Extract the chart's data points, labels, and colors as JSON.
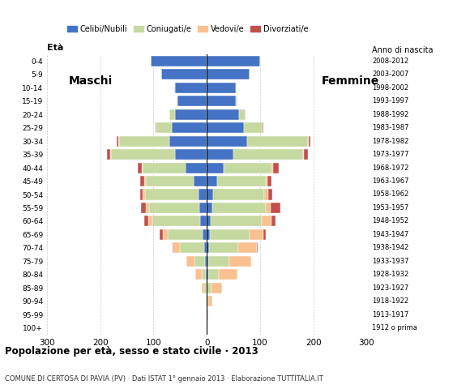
{
  "title": "Popolazione per età, sesso e stato civile · 2013",
  "subtitle": "COMUNE DI CERTOSA DI PAVIA (PV) · Dati ISTAT 1° gennaio 2013 · Elaborazione TUTTITALIA.IT",
  "age_groups": [
    "100+",
    "95-99",
    "90-94",
    "85-89",
    "80-84",
    "75-79",
    "70-74",
    "65-69",
    "60-64",
    "55-59",
    "50-54",
    "45-49",
    "40-44",
    "35-39",
    "30-34",
    "25-29",
    "20-24",
    "15-19",
    "10-14",
    "5-9",
    "0-4"
  ],
  "birth_years": [
    "1912 o prima",
    "1913-1917",
    "1918-1922",
    "1923-1927",
    "1928-1932",
    "1933-1937",
    "1938-1942",
    "1943-1947",
    "1948-1952",
    "1953-1957",
    "1958-1962",
    "1963-1967",
    "1968-1972",
    "1973-1977",
    "1978-1982",
    "1983-1987",
    "1988-1992",
    "1993-1997",
    "1998-2002",
    "2003-2007",
    "2008-2012"
  ],
  "colors": {
    "celibe": "#4472C4",
    "coniugato": "#C6D9A0",
    "vedovo": "#FAC090",
    "divorziato": "#C0504D"
  },
  "males": {
    "celibe": [
      0,
      0,
      0,
      1,
      2,
      3,
      5,
      8,
      12,
      14,
      16,
      25,
      40,
      60,
      70,
      65,
      60,
      55,
      60,
      85,
      105
    ],
    "coniugato": [
      0,
      0,
      1,
      4,
      8,
      20,
      45,
      65,
      90,
      95,
      100,
      90,
      80,
      120,
      95,
      30,
      10,
      2,
      1,
      0,
      0
    ],
    "vedovo": [
      0,
      0,
      1,
      5,
      12,
      15,
      12,
      10,
      8,
      5,
      4,
      2,
      2,
      2,
      1,
      0,
      0,
      0,
      0,
      0,
      0
    ],
    "divorziato": [
      0,
      0,
      0,
      0,
      0,
      0,
      2,
      5,
      8,
      10,
      5,
      8,
      8,
      5,
      3,
      1,
      0,
      0,
      0,
      0,
      0
    ]
  },
  "females": {
    "celibe": [
      0,
      0,
      0,
      1,
      2,
      3,
      4,
      6,
      8,
      10,
      12,
      20,
      32,
      50,
      75,
      70,
      60,
      55,
      55,
      80,
      100
    ],
    "coniugato": [
      0,
      1,
      3,
      8,
      20,
      40,
      55,
      75,
      95,
      100,
      95,
      90,
      90,
      130,
      115,
      35,
      12,
      2,
      1,
      0,
      0
    ],
    "vedovo": [
      1,
      2,
      8,
      20,
      35,
      40,
      35,
      25,
      18,
      10,
      8,
      4,
      3,
      2,
      1,
      0,
      0,
      0,
      0,
      0,
      0
    ],
    "divorziato": [
      0,
      0,
      0,
      0,
      0,
      0,
      2,
      4,
      8,
      18,
      8,
      8,
      10,
      8,
      3,
      1,
      0,
      0,
      0,
      0,
      0
    ]
  },
  "xlim": 300,
  "xlabel_ticks": [
    -300,
    -200,
    -100,
    0,
    100,
    200,
    300
  ],
  "xlabel_labels": [
    "300",
    "200",
    "100",
    "0",
    "100",
    "200",
    "300"
  ]
}
